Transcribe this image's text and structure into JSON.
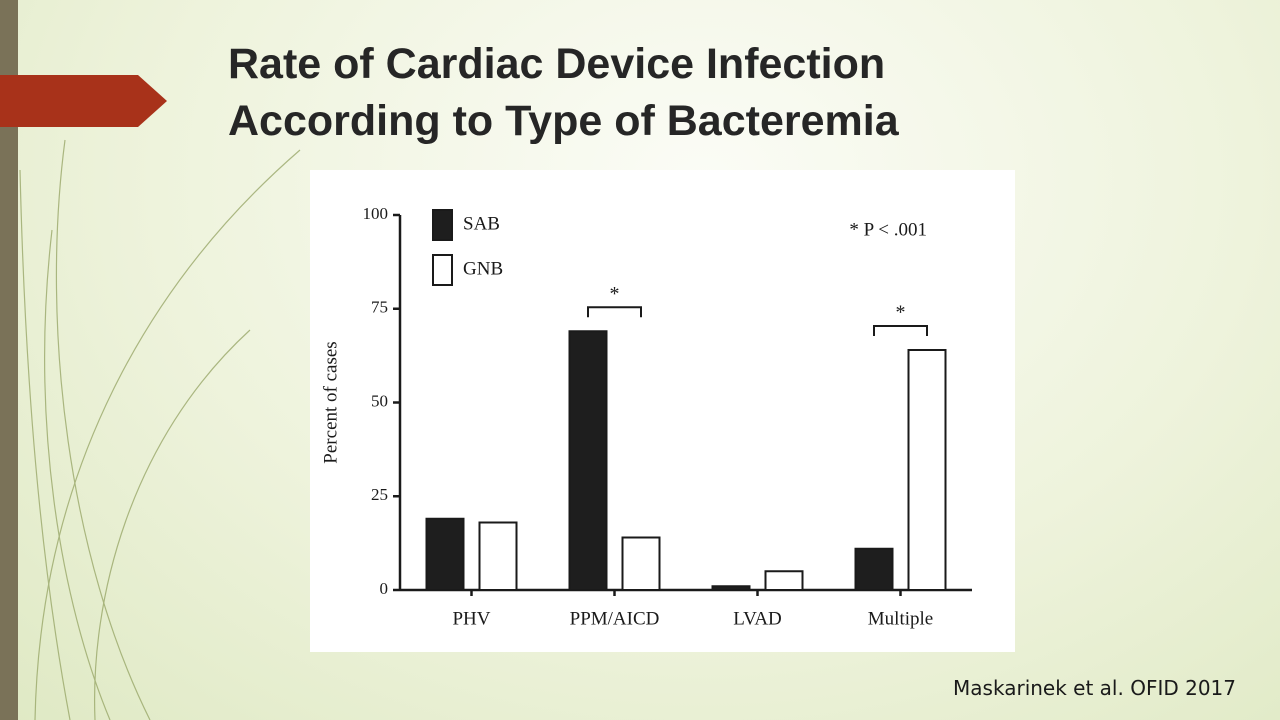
{
  "slide": {
    "title_lines": [
      "Rate of Cardiac Device Infection",
      "According to Type of Bacteremia"
    ],
    "citation": "Maskarinek et al. OFID 2017"
  },
  "chart_data": {
    "type": "bar",
    "ylabel": "Percent of cases",
    "categories": [
      "PHV",
      "PPM/AICD",
      "LVAD",
      "Multiple"
    ],
    "series": [
      {
        "name": "SAB",
        "color": "#1e1e1e",
        "values": [
          19,
          69,
          1,
          11
        ]
      },
      {
        "name": "GNB",
        "color": "#ffffff",
        "values": [
          18,
          14,
          5,
          64
        ]
      }
    ],
    "significance_labels": [
      null,
      "*",
      null,
      "*"
    ],
    "annotation": "* P < .001",
    "ylim": [
      0,
      100
    ],
    "yticks": [
      0,
      25,
      50,
      75,
      100
    ],
    "legend": "upper-left"
  }
}
